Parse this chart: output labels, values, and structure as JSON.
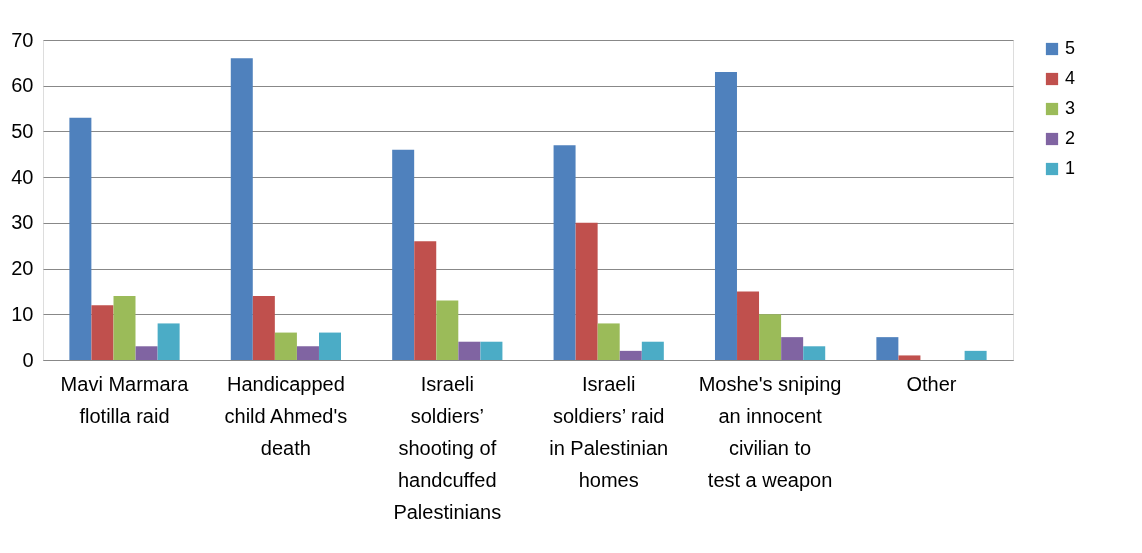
{
  "chart_data": {
    "type": "bar",
    "categories": [
      "Mavi Marmara flotilla raid",
      "Handicapped child Ahmed's death",
      "Israeli soldiers’ shooting of handcuffed Palestinians",
      "Israeli soldiers’ raid in Palestinian homes",
      "Moshe's sniping an innocent civilian to test a weapon",
      "Other"
    ],
    "series": [
      {
        "name": "5",
        "color": "#4f81bd",
        "values": [
          53,
          66,
          46,
          47,
          63,
          5
        ]
      },
      {
        "name": "4",
        "color": "#c0504d",
        "values": [
          12,
          14,
          26,
          30,
          15,
          1
        ]
      },
      {
        "name": "3",
        "color": "#9bbb59",
        "values": [
          14,
          6,
          13,
          8,
          10,
          0
        ]
      },
      {
        "name": "2",
        "color": "#8064a2",
        "values": [
          3,
          3,
          4,
          2,
          5,
          0
        ]
      },
      {
        "name": "1",
        "color": "#4bacc6",
        "values": [
          8,
          6,
          4,
          4,
          3,
          2
        ]
      }
    ],
    "ylim": [
      0,
      70
    ],
    "yticks": [
      0,
      10,
      20,
      30,
      40,
      50,
      60,
      70
    ],
    "grid": "y",
    "legend": "right"
  }
}
